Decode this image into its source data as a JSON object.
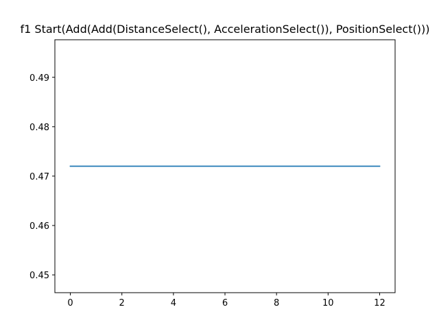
{
  "chart_data": {
    "type": "line",
    "title": "f1 Start(Add(Add(DistanceSelect(), AccelerationSelect()), PositionSelect()))",
    "xlabel": "",
    "ylabel": "",
    "xlim": [
      -0.6,
      12.6
    ],
    "ylim": [
      0.4464,
      0.4976
    ],
    "x_ticks": [
      0,
      2,
      4,
      6,
      8,
      10,
      12
    ],
    "x_tick_labels": [
      "0",
      "2",
      "4",
      "6",
      "8",
      "10",
      "12"
    ],
    "y_ticks": [
      0.45,
      0.46,
      0.47,
      0.48,
      0.49
    ],
    "y_tick_labels": [
      "0.45",
      "0.46",
      "0.47",
      "0.48",
      "0.49"
    ],
    "grid": false,
    "series": [
      {
        "color": "#1f77b4",
        "x": [
          0,
          1,
          2,
          3,
          4,
          5,
          6,
          7,
          8,
          9,
          10,
          11,
          12
        ],
        "y": [
          0.472,
          0.472,
          0.472,
          0.472,
          0.472,
          0.472,
          0.472,
          0.472,
          0.472,
          0.472,
          0.472,
          0.472,
          0.472
        ]
      }
    ]
  }
}
